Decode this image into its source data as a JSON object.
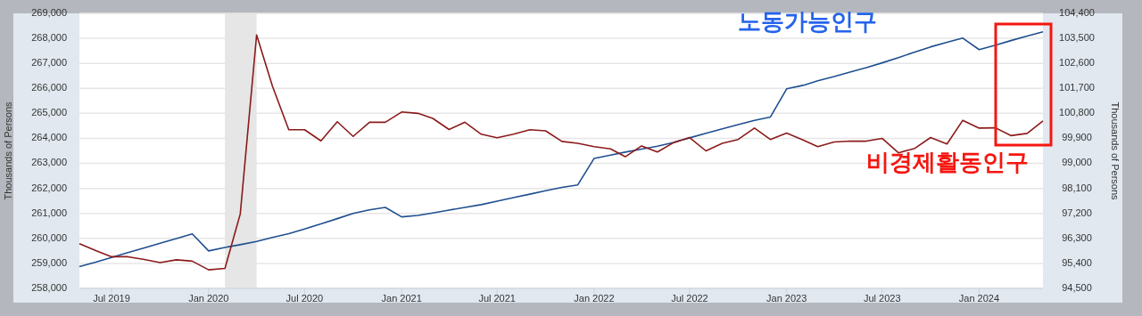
{
  "chart_data": {
    "type": "line",
    "ylabel": "Thousands of Persons",
    "y2label": "Thousands of Persons",
    "x": [
      "2019-05",
      "2019-06",
      "2019-07",
      "2019-08",
      "2019-09",
      "2019-10",
      "2019-11",
      "2019-12",
      "2020-01",
      "2020-02",
      "2020-03",
      "2020-04",
      "2020-05",
      "2020-06",
      "2020-07",
      "2020-08",
      "2020-09",
      "2020-10",
      "2020-11",
      "2020-12",
      "2021-01",
      "2021-02",
      "2021-03",
      "2021-04",
      "2021-05",
      "2021-06",
      "2021-07",
      "2021-08",
      "2021-09",
      "2021-10",
      "2021-11",
      "2021-12",
      "2022-01",
      "2022-02",
      "2022-03",
      "2022-04",
      "2022-05",
      "2022-06",
      "2022-07",
      "2022-08",
      "2022-09",
      "2022-10",
      "2022-11",
      "2022-12",
      "2023-01",
      "2023-02",
      "2023-03",
      "2023-04",
      "2023-05",
      "2023-06",
      "2023-07",
      "2023-08",
      "2023-09",
      "2023-10",
      "2023-11",
      "2023-12",
      "2024-01",
      "2024-02",
      "2024-03",
      "2024-04",
      "2024-05"
    ],
    "series": [
      {
        "name": "노동가능인구",
        "color": "#1f4f8f",
        "values": [
          258870,
          259050,
          259240,
          259430,
          259620,
          259810,
          259990,
          260180,
          259500,
          259640,
          259750,
          259880,
          260040,
          260190,
          260380,
          260580,
          260790,
          261000,
          261140,
          261240,
          260860,
          260920,
          261020,
          261130,
          261240,
          261350,
          261490,
          261630,
          261770,
          261910,
          262040,
          262140,
          263200,
          263330,
          263450,
          263570,
          263690,
          263840,
          264020,
          264200,
          264380,
          264550,
          264720,
          264850,
          265980,
          266120,
          266300,
          266470,
          266650,
          266830,
          267020,
          267230,
          267450,
          267660,
          267840,
          268010,
          267550,
          267730,
          267910,
          268090,
          268260
        ]
      },
      {
        "name": "비경제활동인구",
        "color": "#8b1a1a",
        "axis": "y2",
        "values": [
          96110,
          95860,
          95640,
          95640,
          95540,
          95430,
          95530,
          95480,
          95170,
          95220,
          97180,
          103620,
          101780,
          100210,
          100210,
          99810,
          100500,
          99970,
          100480,
          100480,
          100850,
          100800,
          100620,
          100220,
          100480,
          100050,
          99920,
          100050,
          100210,
          100170,
          99790,
          99720,
          99600,
          99520,
          99240,
          99630,
          99410,
          99750,
          99930,
          99450,
          99720,
          99860,
          100270,
          99860,
          100090,
          99840,
          99600,
          99770,
          99800,
          99800,
          99900,
          99380,
          99540,
          99930,
          99700,
          100550,
          100270,
          100280,
          100000,
          100080,
          100530
        ]
      }
    ],
    "xlim": [
      "2019-05",
      "2024-05"
    ],
    "xticks": [
      {
        "value": "2019-07",
        "label": "Jul 2019"
      },
      {
        "value": "2020-01",
        "label": "Jan 2020"
      },
      {
        "value": "2020-07",
        "label": "Jul 2020"
      },
      {
        "value": "2021-01",
        "label": "Jan 2021"
      },
      {
        "value": "2021-07",
        "label": "Jul 2021"
      },
      {
        "value": "2022-01",
        "label": "Jan 2022"
      },
      {
        "value": "2022-07",
        "label": "Jul 2022"
      },
      {
        "value": "2023-01",
        "label": "Jan 2023"
      },
      {
        "value": "2023-07",
        "label": "Jul 2023"
      },
      {
        "value": "2024-01",
        "label": "Jan 2024"
      }
    ],
    "ylim": [
      258000,
      269000
    ],
    "yticks": [
      {
        "value": 258000,
        "label": "258,000"
      },
      {
        "value": 259000,
        "label": "259,000"
      },
      {
        "value": 260000,
        "label": "260,000"
      },
      {
        "value": 261000,
        "label": "261,000"
      },
      {
        "value": 262000,
        "label": "262,000"
      },
      {
        "value": 263000,
        "label": "263,000"
      },
      {
        "value": 264000,
        "label": "264,000"
      },
      {
        "value": 265000,
        "label": "265,000"
      },
      {
        "value": 266000,
        "label": "266,000"
      },
      {
        "value": 267000,
        "label": "267,000"
      },
      {
        "value": 268000,
        "label": "268,000"
      },
      {
        "value": 269000,
        "label": "269,000"
      }
    ],
    "y2lim": [
      94500,
      104400
    ],
    "y2ticks": [
      {
        "value": 94500,
        "label": "94,500"
      },
      {
        "value": 95400,
        "label": "95,400"
      },
      {
        "value": 96300,
        "label": "96,300"
      },
      {
        "value": 97200,
        "label": "97,200"
      },
      {
        "value": 98100,
        "label": "98,100"
      },
      {
        "value": 99000,
        "label": "99,000"
      },
      {
        "value": 99900,
        "label": "99,900"
      },
      {
        "value": 100800,
        "label": "100,800"
      },
      {
        "value": 101700,
        "label": "101,700"
      },
      {
        "value": 102600,
        "label": "102,600"
      },
      {
        "value": 103500,
        "label": "103,500"
      },
      {
        "value": 104400,
        "label": "104,400"
      }
    ],
    "bands": [
      {
        "axis": "x",
        "from": "2020-02",
        "to": "2020-04",
        "color": "#e6e6e6"
      }
    ],
    "grid": "y",
    "marker": "none",
    "line_style": "solid"
  }
}
